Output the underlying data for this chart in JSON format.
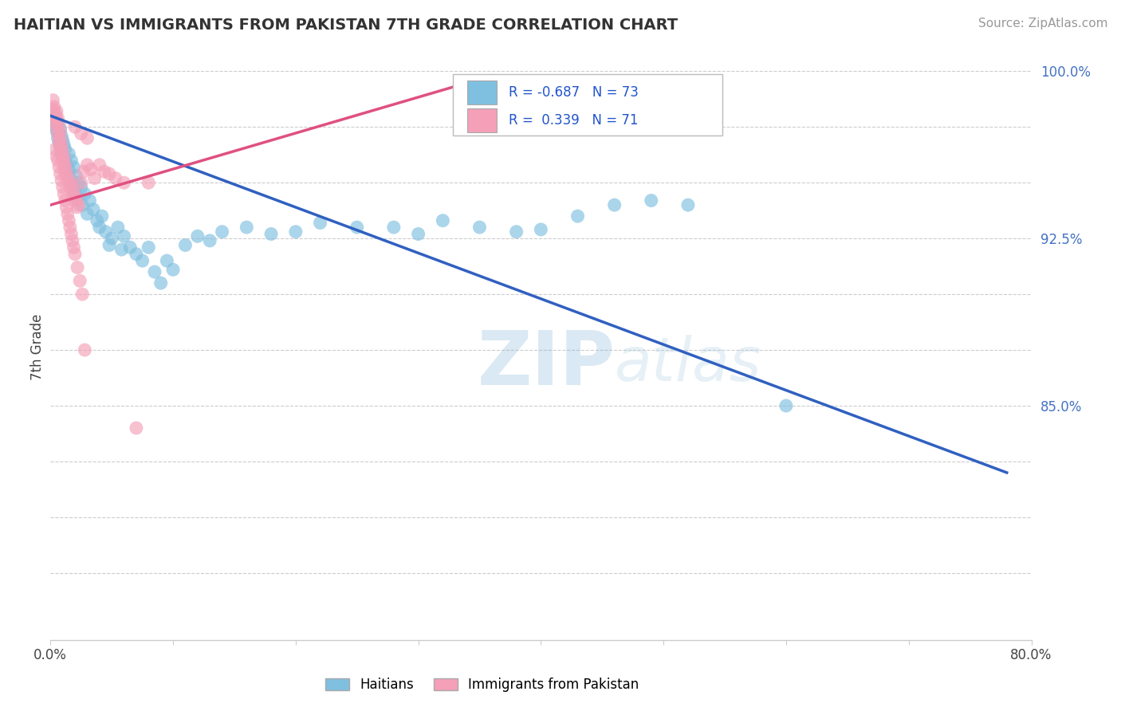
{
  "title": "HAITIAN VS IMMIGRANTS FROM PAKISTAN 7TH GRADE CORRELATION CHART",
  "source": "Source: ZipAtlas.com",
  "ylabel": "7th Grade",
  "xlim": [
    0.0,
    0.8
  ],
  "ylim": [
    0.745,
    1.008
  ],
  "blue_color": "#7FBFDF",
  "pink_color": "#F4A0B8",
  "blue_line_color": "#3060C0",
  "pink_line_color": "#E05080",
  "watermark_zip": "ZIP",
  "watermark_atlas": "atlas",
  "blue_scatter_x": [
    0.002,
    0.003,
    0.004,
    0.005,
    0.005,
    0.006,
    0.006,
    0.007,
    0.007,
    0.008,
    0.008,
    0.009,
    0.009,
    0.01,
    0.01,
    0.011,
    0.012,
    0.012,
    0.013,
    0.014,
    0.015,
    0.015,
    0.016,
    0.017,
    0.018,
    0.019,
    0.02,
    0.021,
    0.022,
    0.023,
    0.025,
    0.026,
    0.028,
    0.03,
    0.032,
    0.035,
    0.038,
    0.04,
    0.042,
    0.045,
    0.048,
    0.05,
    0.055,
    0.058,
    0.06,
    0.065,
    0.07,
    0.075,
    0.08,
    0.085,
    0.09,
    0.095,
    0.1,
    0.11,
    0.12,
    0.13,
    0.14,
    0.16,
    0.18,
    0.2,
    0.22,
    0.25,
    0.28,
    0.3,
    0.32,
    0.35,
    0.38,
    0.4,
    0.43,
    0.46,
    0.49,
    0.52,
    0.6
  ],
  "blue_scatter_y": [
    0.977,
    0.979,
    0.975,
    0.973,
    0.978,
    0.97,
    0.976,
    0.968,
    0.972,
    0.966,
    0.974,
    0.964,
    0.971,
    0.962,
    0.969,
    0.967,
    0.96,
    0.965,
    0.958,
    0.955,
    0.963,
    0.956,
    0.952,
    0.96,
    0.949,
    0.957,
    0.946,
    0.953,
    0.943,
    0.95,
    0.948,
    0.94,
    0.945,
    0.936,
    0.942,
    0.938,
    0.933,
    0.93,
    0.935,
    0.928,
    0.922,
    0.925,
    0.93,
    0.92,
    0.926,
    0.921,
    0.918,
    0.915,
    0.921,
    0.91,
    0.905,
    0.915,
    0.911,
    0.922,
    0.926,
    0.924,
    0.928,
    0.93,
    0.927,
    0.928,
    0.932,
    0.93,
    0.93,
    0.927,
    0.933,
    0.93,
    0.928,
    0.929,
    0.935,
    0.94,
    0.942,
    0.94,
    0.85
  ],
  "pink_scatter_x": [
    0.002,
    0.002,
    0.003,
    0.003,
    0.004,
    0.004,
    0.005,
    0.005,
    0.005,
    0.006,
    0.006,
    0.007,
    0.007,
    0.008,
    0.008,
    0.008,
    0.009,
    0.009,
    0.01,
    0.01,
    0.011,
    0.011,
    0.012,
    0.012,
    0.013,
    0.014,
    0.015,
    0.016,
    0.017,
    0.018,
    0.019,
    0.02,
    0.021,
    0.022,
    0.023,
    0.025,
    0.027,
    0.03,
    0.033,
    0.036,
    0.04,
    0.044,
    0.048,
    0.053,
    0.06,
    0.07,
    0.08,
    0.02,
    0.025,
    0.03,
    0.004,
    0.005,
    0.006,
    0.007,
    0.008,
    0.009,
    0.01,
    0.011,
    0.012,
    0.013,
    0.014,
    0.015,
    0.016,
    0.017,
    0.018,
    0.019,
    0.02,
    0.022,
    0.024,
    0.026,
    0.028
  ],
  "pink_scatter_y": [
    0.987,
    0.983,
    0.984,
    0.98,
    0.981,
    0.977,
    0.978,
    0.982,
    0.975,
    0.979,
    0.972,
    0.976,
    0.969,
    0.973,
    0.966,
    0.97,
    0.963,
    0.967,
    0.96,
    0.964,
    0.961,
    0.957,
    0.958,
    0.954,
    0.955,
    0.951,
    0.952,
    0.948,
    0.949,
    0.945,
    0.946,
    0.942,
    0.943,
    0.939,
    0.94,
    0.95,
    0.955,
    0.958,
    0.956,
    0.952,
    0.958,
    0.955,
    0.954,
    0.952,
    0.95,
    0.84,
    0.95,
    0.975,
    0.972,
    0.97,
    0.965,
    0.962,
    0.96,
    0.957,
    0.954,
    0.951,
    0.948,
    0.945,
    0.942,
    0.939,
    0.936,
    0.933,
    0.93,
    0.927,
    0.924,
    0.921,
    0.918,
    0.912,
    0.906,
    0.9,
    0.875
  ],
  "blue_trendline_x": [
    0.0,
    0.78
  ],
  "blue_trendline_y": [
    0.98,
    0.82
  ],
  "pink_trendline_x": [
    0.0,
    0.36
  ],
  "pink_trendline_y": [
    0.94,
    0.998
  ],
  "ytick_vals": [
    0.775,
    0.8,
    0.825,
    0.85,
    0.875,
    0.9,
    0.925,
    0.95,
    0.975,
    1.0
  ],
  "ytick_labels": [
    "",
    "",
    "",
    "85.0%",
    "",
    "",
    "92.5%",
    "",
    "",
    "100.0%"
  ],
  "xtick_vals": [
    0.0,
    0.1,
    0.2,
    0.3,
    0.4,
    0.5,
    0.6,
    0.7,
    0.8
  ],
  "xtick_labels": [
    "0.0%",
    "",
    "",
    "",
    "",
    "",
    "",
    "",
    "80.0%"
  ],
  "grid_y": [
    0.775,
    0.8,
    0.825,
    0.85,
    0.875,
    0.9,
    0.925,
    0.95,
    0.975,
    1.0
  ],
  "legend_entries": [
    {
      "color": "#7FBFDF",
      "text": "R = -0.687   N = 73"
    },
    {
      "color": "#F4A0B8",
      "text": "R =  0.339   N = 71"
    }
  ],
  "bottom_legend": [
    {
      "color": "#7FBFDF",
      "label": "Haitians"
    },
    {
      "color": "#F4A0B8",
      "label": "Immigrants from Pakistan"
    }
  ]
}
